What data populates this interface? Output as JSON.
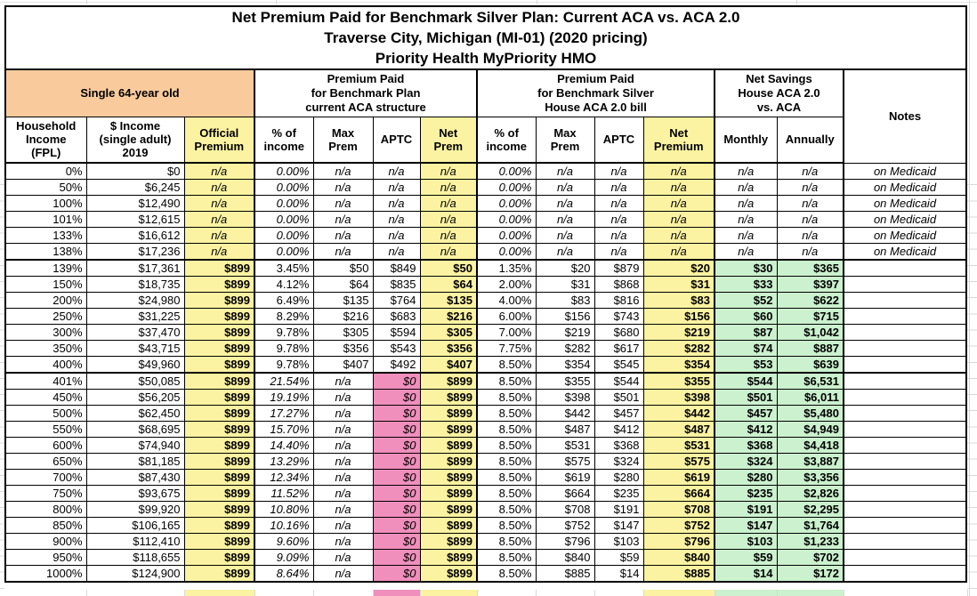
{
  "title": {
    "line1": "Net Premium Paid for Benchmark Silver Plan: Current ACA vs. ACA 2.0",
    "line2": "Traverse City, Michigan (MI-01) (2020 pricing)",
    "line3": "Priority Health MyPriority HMO"
  },
  "groups": {
    "demographic": "Single 64-year old",
    "current_aca": "Premium Paid\nfor Benchmark Plan\ncurrent ACA structure",
    "aca2": "Premium Paid\nfor Benchmark Silver\nHouse ACA 2.0 bill",
    "savings": "Net Savings\nHouse ACA 2.0\nvs. ACA",
    "notes": "Notes"
  },
  "headers": {
    "fpl": "Household\nIncome\n(FPL)",
    "income": "$ Income\n(single adult)\n2019",
    "official": "Official\nPremium",
    "pct1": "% of\nincome",
    "max1": "Max\nPrem",
    "aptc1": "APTC",
    "net1": "Net\nPrem",
    "pct2": "% of\nincome",
    "max2": "Max\nPrem",
    "aptc2": "APTC",
    "net2": "Net\nPremium",
    "monthly": "Monthly",
    "annually": "Annually"
  },
  "colors": {
    "header_orange": "#f9cb9c",
    "highlight_yellow": "#fbf3a1",
    "aptc_pink": "#f08fbc",
    "savings_green": "#cbf1ce"
  },
  "rows": [
    {
      "type": "medicaid",
      "fpl": "0%",
      "income": "$0",
      "official": "n/a",
      "pct1": "0.00%",
      "max1": "n/a",
      "aptc1": "n/a",
      "net1": "n/a",
      "pct2": "0.00%",
      "max2": "n/a",
      "aptc2": "n/a",
      "net2": "n/a",
      "monthly": "n/a",
      "annually": "n/a",
      "note": "on Medicaid"
    },
    {
      "type": "medicaid",
      "fpl": "50%",
      "income": "$6,245",
      "official": "n/a",
      "pct1": "0.00%",
      "max1": "n/a",
      "aptc1": "n/a",
      "net1": "n/a",
      "pct2": "0.00%",
      "max2": "n/a",
      "aptc2": "n/a",
      "net2": "n/a",
      "monthly": "n/a",
      "annually": "n/a",
      "note": "on Medicaid"
    },
    {
      "type": "medicaid",
      "fpl": "100%",
      "income": "$12,490",
      "official": "n/a",
      "pct1": "0.00%",
      "max1": "n/a",
      "aptc1": "n/a",
      "net1": "n/a",
      "pct2": "0.00%",
      "max2": "n/a",
      "aptc2": "n/a",
      "net2": "n/a",
      "monthly": "n/a",
      "annually": "n/a",
      "note": "on Medicaid"
    },
    {
      "type": "medicaid",
      "fpl": "101%",
      "income": "$12,615",
      "official": "n/a",
      "pct1": "0.00%",
      "max1": "n/a",
      "aptc1": "n/a",
      "net1": "n/a",
      "pct2": "0.00%",
      "max2": "n/a",
      "aptc2": "n/a",
      "net2": "n/a",
      "monthly": "n/a",
      "annually": "n/a",
      "note": "on Medicaid"
    },
    {
      "type": "medicaid",
      "fpl": "133%",
      "income": "$16,612",
      "official": "n/a",
      "pct1": "0.00%",
      "max1": "n/a",
      "aptc1": "n/a",
      "net1": "n/a",
      "pct2": "0.00%",
      "max2": "n/a",
      "aptc2": "n/a",
      "net2": "n/a",
      "monthly": "n/a",
      "annually": "n/a",
      "note": "on Medicaid"
    },
    {
      "type": "medicaid",
      "fpl": "138%",
      "income": "$17,236",
      "official": "n/a",
      "pct1": "0.00%",
      "max1": "n/a",
      "aptc1": "n/a",
      "net1": "n/a",
      "pct2": "0.00%",
      "max2": "n/a",
      "aptc2": "n/a",
      "net2": "n/a",
      "monthly": "n/a",
      "annually": "n/a",
      "note": "on Medicaid"
    },
    {
      "type": "mid",
      "fpl": "139%",
      "income": "$17,361",
      "official": "$899",
      "pct1": "3.45%",
      "max1": "$50",
      "aptc1": "$849",
      "net1": "$50",
      "pct2": "1.35%",
      "max2": "$20",
      "aptc2": "$879",
      "net2": "$20",
      "monthly": "$30",
      "annually": "$365",
      "note": ""
    },
    {
      "type": "mid",
      "fpl": "150%",
      "income": "$18,735",
      "official": "$899",
      "pct1": "4.12%",
      "max1": "$64",
      "aptc1": "$835",
      "net1": "$64",
      "pct2": "2.00%",
      "max2": "$31",
      "aptc2": "$868",
      "net2": "$31",
      "monthly": "$33",
      "annually": "$397",
      "note": ""
    },
    {
      "type": "mid",
      "fpl": "200%",
      "income": "$24,980",
      "official": "$899",
      "pct1": "6.49%",
      "max1": "$135",
      "aptc1": "$764",
      "net1": "$135",
      "pct2": "4.00%",
      "max2": "$83",
      "aptc2": "$816",
      "net2": "$83",
      "monthly": "$52",
      "annually": "$622",
      "note": ""
    },
    {
      "type": "mid",
      "fpl": "250%",
      "income": "$31,225",
      "official": "$899",
      "pct1": "8.29%",
      "max1": "$216",
      "aptc1": "$683",
      "net1": "$216",
      "pct2": "6.00%",
      "max2": "$156",
      "aptc2": "$743",
      "net2": "$156",
      "monthly": "$60",
      "annually": "$715",
      "note": ""
    },
    {
      "type": "mid",
      "fpl": "300%",
      "income": "$37,470",
      "official": "$899",
      "pct1": "9.78%",
      "max1": "$305",
      "aptc1": "$594",
      "net1": "$305",
      "pct2": "7.00%",
      "max2": "$219",
      "aptc2": "$680",
      "net2": "$219",
      "monthly": "$87",
      "annually": "$1,042",
      "note": ""
    },
    {
      "type": "mid",
      "fpl": "350%",
      "income": "$43,715",
      "official": "$899",
      "pct1": "9.78%",
      "max1": "$356",
      "aptc1": "$543",
      "net1": "$356",
      "pct2": "7.75%",
      "max2": "$282",
      "aptc2": "$617",
      "net2": "$282",
      "monthly": "$74",
      "annually": "$887",
      "note": ""
    },
    {
      "type": "mid",
      "fpl": "400%",
      "income": "$49,960",
      "official": "$899",
      "pct1": "9.78%",
      "max1": "$407",
      "aptc1": "$492",
      "net1": "$407",
      "pct2": "8.50%",
      "max2": "$354",
      "aptc2": "$545",
      "net2": "$354",
      "monthly": "$53",
      "annually": "$639",
      "note": ""
    },
    {
      "type": "high",
      "fpl": "401%",
      "income": "$50,085",
      "official": "$899",
      "pct1": "21.54%",
      "max1": "n/a",
      "aptc1": "$0",
      "net1": "$899",
      "pct2": "8.50%",
      "max2": "$355",
      "aptc2": "$544",
      "net2": "$355",
      "monthly": "$544",
      "annually": "$6,531",
      "note": ""
    },
    {
      "type": "high",
      "fpl": "450%",
      "income": "$56,205",
      "official": "$899",
      "pct1": "19.19%",
      "max1": "n/a",
      "aptc1": "$0",
      "net1": "$899",
      "pct2": "8.50%",
      "max2": "$398",
      "aptc2": "$501",
      "net2": "$398",
      "monthly": "$501",
      "annually": "$6,011",
      "note": ""
    },
    {
      "type": "high",
      "fpl": "500%",
      "income": "$62,450",
      "official": "$899",
      "pct1": "17.27%",
      "max1": "n/a",
      "aptc1": "$0",
      "net1": "$899",
      "pct2": "8.50%",
      "max2": "$442",
      "aptc2": "$457",
      "net2": "$442",
      "monthly": "$457",
      "annually": "$5,480",
      "note": ""
    },
    {
      "type": "high",
      "fpl": "550%",
      "income": "$68,695",
      "official": "$899",
      "pct1": "15.70%",
      "max1": "n/a",
      "aptc1": "$0",
      "net1": "$899",
      "pct2": "8.50%",
      "max2": "$487",
      "aptc2": "$412",
      "net2": "$487",
      "monthly": "$412",
      "annually": "$4,949",
      "note": ""
    },
    {
      "type": "high",
      "fpl": "600%",
      "income": "$74,940",
      "official": "$899",
      "pct1": "14.40%",
      "max1": "n/a",
      "aptc1": "$0",
      "net1": "$899",
      "pct2": "8.50%",
      "max2": "$531",
      "aptc2": "$368",
      "net2": "$531",
      "monthly": "$368",
      "annually": "$4,418",
      "note": ""
    },
    {
      "type": "high",
      "fpl": "650%",
      "income": "$81,185",
      "official": "$899",
      "pct1": "13.29%",
      "max1": "n/a",
      "aptc1": "$0",
      "net1": "$899",
      "pct2": "8.50%",
      "max2": "$575",
      "aptc2": "$324",
      "net2": "$575",
      "monthly": "$324",
      "annually": "$3,887",
      "note": ""
    },
    {
      "type": "high",
      "fpl": "700%",
      "income": "$87,430",
      "official": "$899",
      "pct1": "12.34%",
      "max1": "n/a",
      "aptc1": "$0",
      "net1": "$899",
      "pct2": "8.50%",
      "max2": "$619",
      "aptc2": "$280",
      "net2": "$619",
      "monthly": "$280",
      "annually": "$3,356",
      "note": ""
    },
    {
      "type": "high",
      "fpl": "750%",
      "income": "$93,675",
      "official": "$899",
      "pct1": "11.52%",
      "max1": "n/a",
      "aptc1": "$0",
      "net1": "$899",
      "pct2": "8.50%",
      "max2": "$664",
      "aptc2": "$235",
      "net2": "$664",
      "monthly": "$235",
      "annually": "$2,826",
      "note": ""
    },
    {
      "type": "high",
      "fpl": "800%",
      "income": "$99,920",
      "official": "$899",
      "pct1": "10.80%",
      "max1": "n/a",
      "aptc1": "$0",
      "net1": "$899",
      "pct2": "8.50%",
      "max2": "$708",
      "aptc2": "$191",
      "net2": "$708",
      "monthly": "$191",
      "annually": "$2,295",
      "note": ""
    },
    {
      "type": "high",
      "fpl": "850%",
      "income": "$106,165",
      "official": "$899",
      "pct1": "10.16%",
      "max1": "n/a",
      "aptc1": "$0",
      "net1": "$899",
      "pct2": "8.50%",
      "max2": "$752",
      "aptc2": "$147",
      "net2": "$752",
      "monthly": "$147",
      "annually": "$1,764",
      "note": ""
    },
    {
      "type": "high",
      "fpl": "900%",
      "income": "$112,410",
      "official": "$899",
      "pct1": "9.60%",
      "max1": "n/a",
      "aptc1": "$0",
      "net1": "$899",
      "pct2": "8.50%",
      "max2": "$796",
      "aptc2": "$103",
      "net2": "$796",
      "monthly": "$103",
      "annually": "$1,233",
      "note": ""
    },
    {
      "type": "high",
      "fpl": "950%",
      "income": "$118,655",
      "official": "$899",
      "pct1": "9.09%",
      "max1": "n/a",
      "aptc1": "$0",
      "net1": "$899",
      "pct2": "8.50%",
      "max2": "$840",
      "aptc2": "$59",
      "net2": "$840",
      "monthly": "$59",
      "annually": "$702",
      "note": ""
    },
    {
      "type": "high",
      "fpl": "1000%",
      "income": "$124,900",
      "official": "$899",
      "pct1": "8.64%",
      "max1": "n/a",
      "aptc1": "$0",
      "net1": "$899",
      "pct2": "8.50%",
      "max2": "$885",
      "aptc2": "$14",
      "net2": "$885",
      "monthly": "$14",
      "annually": "$172",
      "note": ""
    }
  ]
}
